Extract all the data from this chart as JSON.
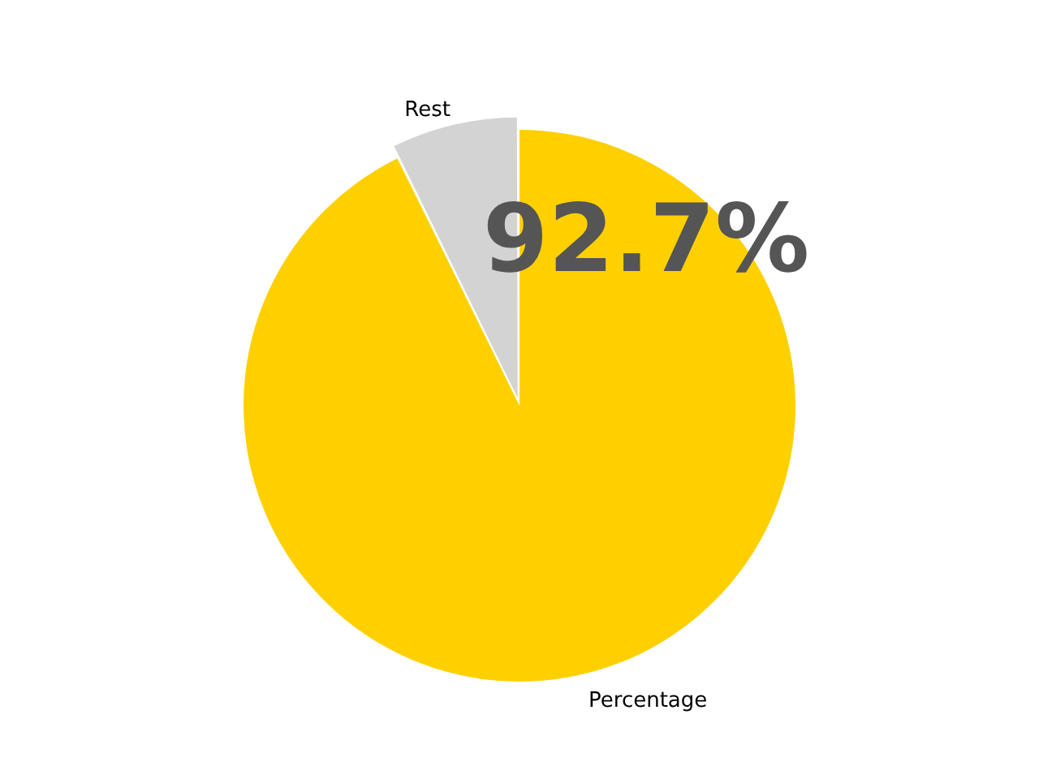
{
  "chart_data": {
    "type": "pie",
    "categories": [
      "Percentage",
      "Rest"
    ],
    "values": [
      92.7,
      7.3
    ],
    "colors": [
      "#ffd000",
      "#d3d3d3"
    ],
    "annotations": [
      "92.7%"
    ]
  }
}
